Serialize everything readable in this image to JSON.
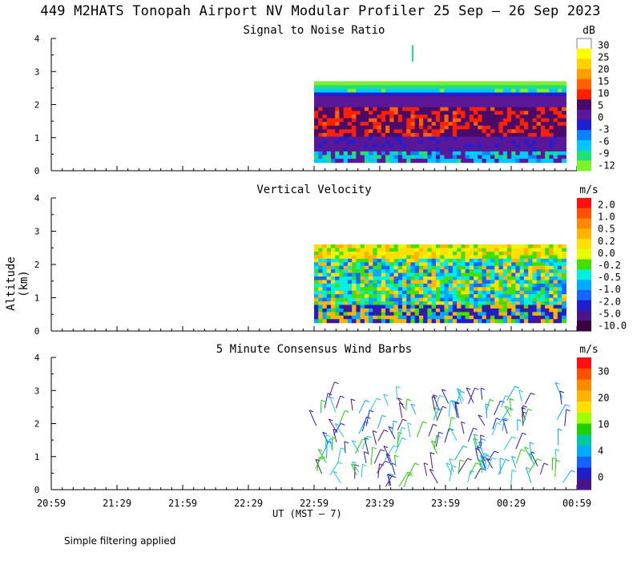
{
  "title": "449 M2HATS Tonopah Airport NV Modular Profiler 25 Sep – 26 Sep 2023",
  "ylabel": "Altitude (km)",
  "xlabel": "UT  (MST – 7)",
  "footnote": "Simple filtering applied",
  "x_ticks": [
    "20:59",
    "21:29",
    "21:59",
    "22:29",
    "22:59",
    "23:29",
    "23:59",
    "00:29",
    "00:59"
  ],
  "y_ticks": [
    "0",
    "1",
    "2",
    "3",
    "4"
  ],
  "chart_data": [
    {
      "type": "heatmap",
      "title": "Signal to Noise Ratio",
      "unit": "dB",
      "ylim": [
        0,
        4
      ],
      "x_range": [
        "20:59",
        "00:59"
      ],
      "data_start": "22:59",
      "data_end": "00:54",
      "colorbar_labels": [
        "30",
        "25",
        "20",
        "15",
        "10",
        "5",
        "0",
        "-3",
        "-6",
        "-9",
        "-12"
      ],
      "colors": [
        "#ffffff",
        "#ffff00",
        "#ffd200",
        "#ffa000",
        "#ff6000",
        "#ff2000",
        "#4a0a6a",
        "#5a1898",
        "#1e1ed2",
        "#0a82ff",
        "#00c8ff",
        "#20e07a",
        "#7cf028"
      ],
      "top_height_km": 2.7,
      "bottom_height_km": 0.25
    },
    {
      "type": "heatmap",
      "title": "Vertical Velocity",
      "unit": "m/s",
      "ylim": [
        0,
        4
      ],
      "x_range": [
        "20:59",
        "00:59"
      ],
      "data_start": "22:59",
      "data_end": "00:54",
      "colorbar_labels": [
        "2.0",
        "1.0",
        "0.5",
        "0.2",
        "0.0",
        "-0.2",
        "-0.5",
        "-1.0",
        "-2.0",
        "-5.0",
        "-10.0"
      ],
      "colors": [
        "#ff1010",
        "#ff5000",
        "#ff8a00",
        "#ffb400",
        "#ffe000",
        "#e6ff00",
        "#40e000",
        "#00f0e0",
        "#00aaff",
        "#1464ff",
        "#1e1ecc",
        "#4a148c",
        "#3a0040"
      ],
      "top_height_km": 2.6,
      "bottom_height_km": 0.25
    },
    {
      "type": "scatter",
      "title": "5 Minute Consensus Wind Barbs",
      "unit": "m/s",
      "ylim": [
        0,
        4
      ],
      "x_range": [
        "20:59",
        "00:59"
      ],
      "data_start": "22:59",
      "data_end": "00:54",
      "colorbar_labels": [
        "30",
        "20",
        "10",
        "4",
        "0"
      ],
      "colors": [
        "#ff1010",
        "#ff5000",
        "#ff8a00",
        "#ffb400",
        "#ffe000",
        "#a0ff00",
        "#20d000",
        "#00c8a0",
        "#00aaff",
        "#1464ff",
        "#1e1ecc",
        "#4a148c"
      ],
      "barb_colors": [
        "#4a148c",
        "#1e1ecc",
        "#00aaff",
        "#20c8d8",
        "#20d000"
      ],
      "top_height_km": 2.8,
      "bottom_height_km": 0.05
    }
  ]
}
